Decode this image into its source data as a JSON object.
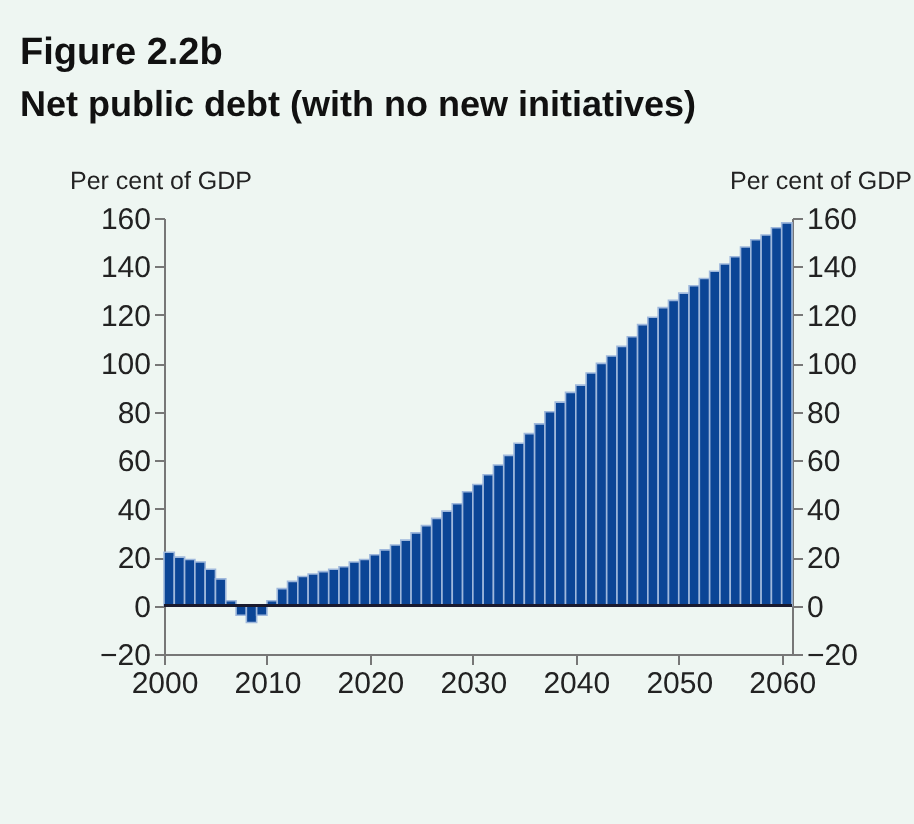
{
  "chart_data": {
    "type": "bar",
    "title": "Figure 2.2b",
    "subtitle": "Net public debt (with no new initiatives)",
    "ylabel": "Per cent of GDP",
    "y2label": "Per cent of GDP",
    "x": [
      2000,
      2001,
      2002,
      2003,
      2004,
      2005,
      2006,
      2007,
      2008,
      2009,
      2010,
      2011,
      2012,
      2013,
      2014,
      2015,
      2016,
      2017,
      2018,
      2019,
      2020,
      2021,
      2022,
      2023,
      2024,
      2025,
      2026,
      2027,
      2028,
      2029,
      2030,
      2031,
      2032,
      2033,
      2034,
      2035,
      2036,
      2037,
      2038,
      2039,
      2040,
      2041,
      2042,
      2043,
      2044,
      2045,
      2046,
      2047,
      2048,
      2049,
      2050,
      2051,
      2052,
      2053,
      2054,
      2055,
      2056,
      2057,
      2058,
      2059,
      2060
    ],
    "values": [
      22,
      20,
      19,
      18,
      15,
      11,
      2,
      -4,
      -7,
      -4,
      2,
      7,
      10,
      12,
      13,
      14,
      15,
      16,
      18,
      19,
      21,
      23,
      25,
      27,
      30,
      33,
      36,
      39,
      42,
      47,
      50,
      54,
      58,
      62,
      67,
      71,
      75,
      80,
      84,
      88,
      91,
      96,
      100,
      103,
      107,
      111,
      116,
      119,
      123,
      126,
      129,
      132,
      135,
      138,
      141,
      144,
      148,
      151,
      153,
      156,
      158
    ],
    "color": "#0b4596",
    "xlim": [
      2000,
      2061
    ],
    "xticks": [
      2000,
      2010,
      2020,
      2030,
      2040,
      2050,
      2060
    ],
    "ylim": [
      -20,
      160
    ],
    "yticks": [
      -20,
      0,
      20,
      40,
      60,
      80,
      100,
      120,
      140,
      160
    ],
    "y2lim": [
      -20,
      160
    ],
    "y2ticks": [
      -20,
      0,
      20,
      40,
      60,
      80,
      100,
      120,
      140,
      160
    ],
    "ref_lines": [
      {
        "axis": "y",
        "value": 0,
        "color": "#1a1a2e"
      }
    ]
  }
}
